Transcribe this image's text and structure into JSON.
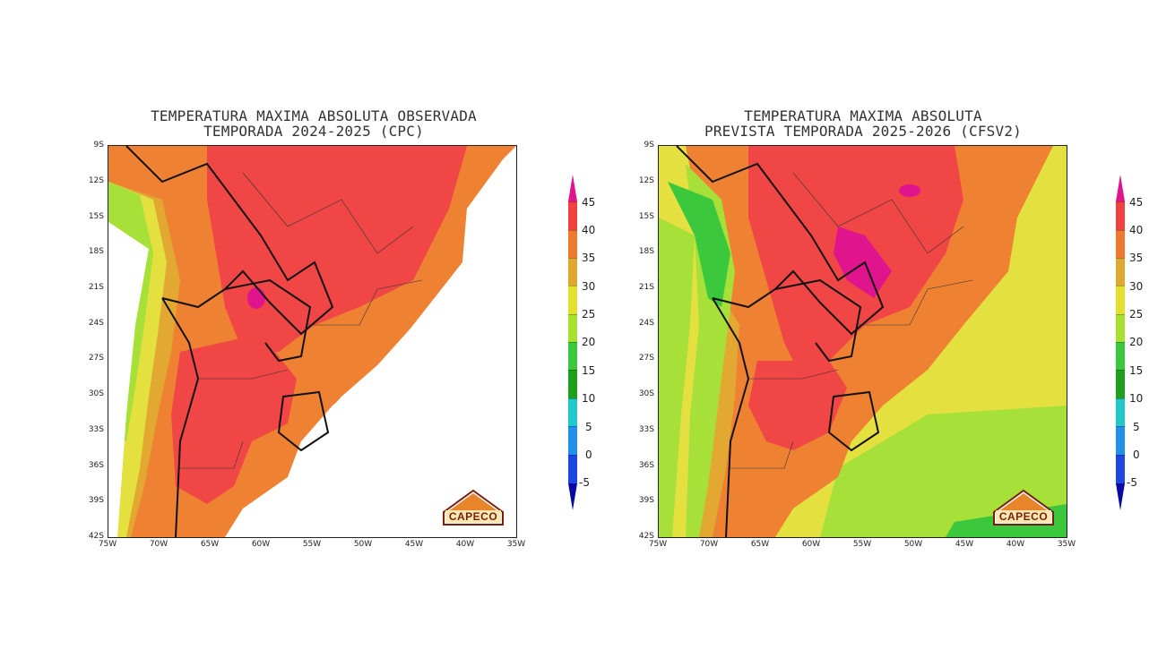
{
  "panels": [
    {
      "title_line1": "TEMPERATURA MAXIMA ABSOLUTA OBSERVADA",
      "title_line2": "TEMPORADA  2024-2025 (CPC)"
    },
    {
      "title_line1": "TEMPERATURA MAXIMA ABSOLUTA",
      "title_line2": "PREVISTA TEMPORADA 2025-2026 (CFSV2)"
    }
  ],
  "y_ticks": [
    "9S",
    "12S",
    "15S",
    "18S",
    "21S",
    "24S",
    "27S",
    "30S",
    "33S",
    "36S",
    "39S",
    "42S"
  ],
  "x_ticks": [
    "75W",
    "70W",
    "65W",
    "60W",
    "55W",
    "50W",
    "45W",
    "40W",
    "35W"
  ],
  "colorbar": {
    "labels": [
      "45",
      "40",
      "35",
      "30",
      "25",
      "20",
      "15",
      "10",
      "5",
      "0",
      "-5"
    ],
    "colors": [
      "#e8007a",
      "#f04040",
      "#ee7a30",
      "#e0a830",
      "#e3e030",
      "#a8e030",
      "#3cc83c",
      "#1ea01e",
      "#20c8c8",
      "#2090e8",
      "#1e46e0",
      "#0a0aa0"
    ]
  },
  "logo_text": "CAPECO",
  "map_colors": {
    "very_hot": "#f04646",
    "hot": "#ee8232",
    "warm": "#e2a832",
    "mild": "#e4e040",
    "cool": "#a8e03a",
    "cold": "#3cc83c",
    "extreme": "#e0148c"
  }
}
